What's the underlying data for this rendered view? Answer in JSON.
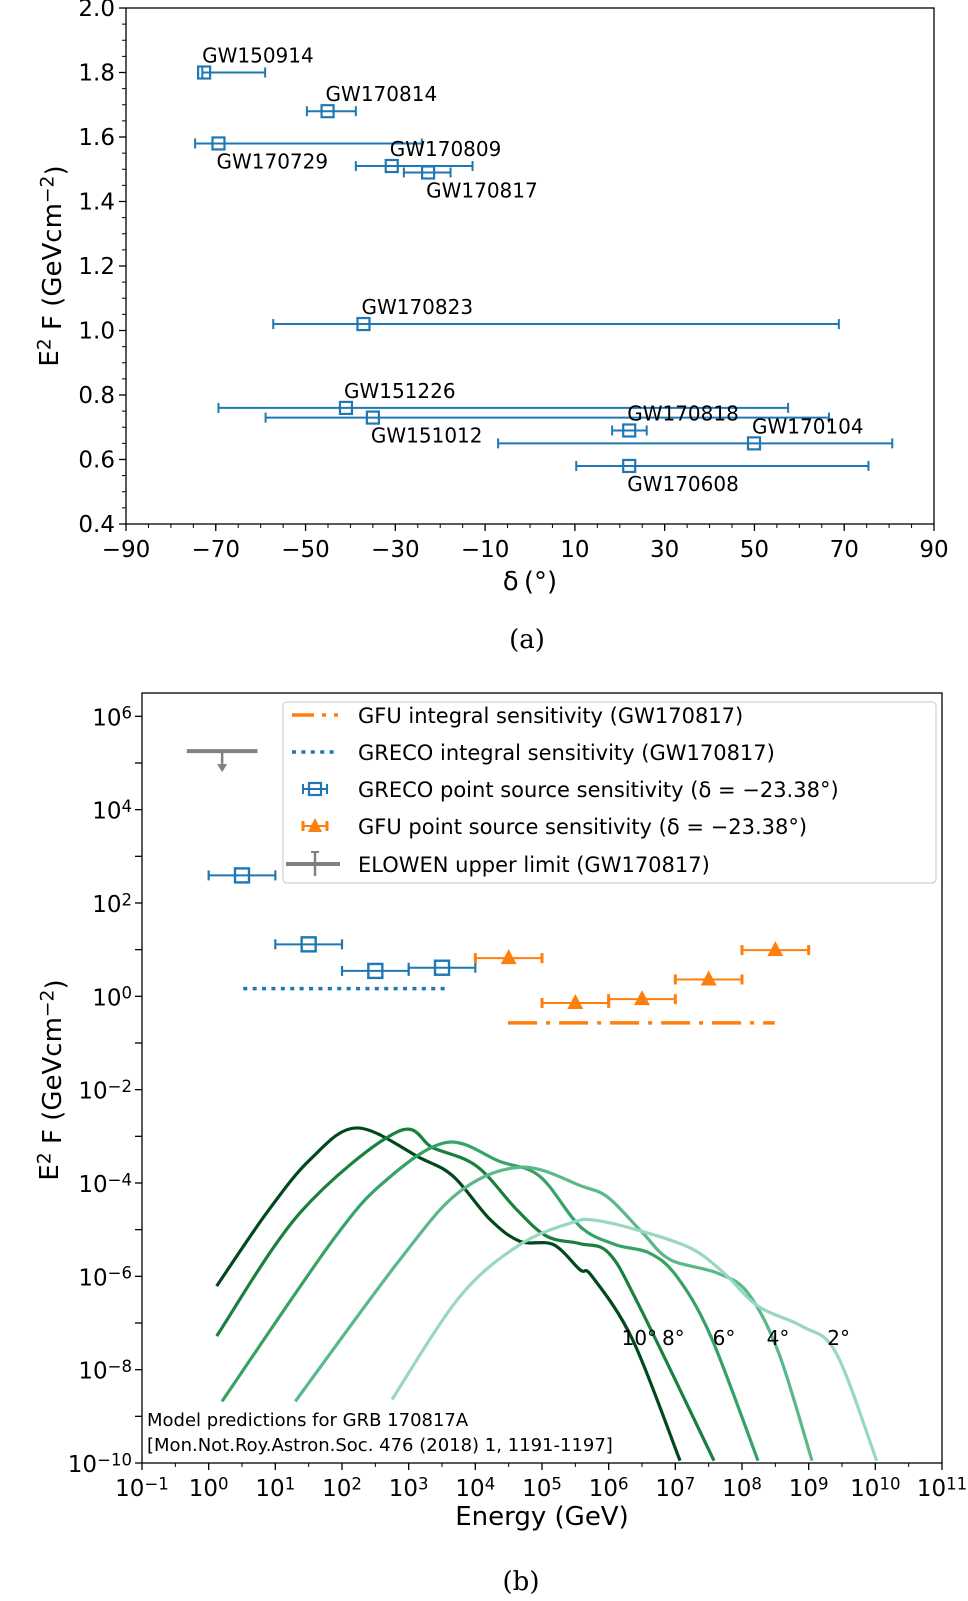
{
  "chart_data": [
    {
      "id": "a",
      "type": "scatter",
      "caption": "(a)",
      "xlabel": "δ (°)",
      "ylabel": "E^{2} F (GeVcm^{−2})",
      "xlim": [
        -90,
        90
      ],
      "ylim": [
        0.4,
        2.0
      ],
      "xticks": [
        -90,
        -70,
        -50,
        -30,
        -10,
        10,
        30,
        50,
        70,
        90
      ],
      "xtick_labels": [
        "−90",
        "−70",
        "−50",
        "−30",
        "−10",
        "10",
        "30",
        "50",
        "70",
        "90"
      ],
      "yticks": [
        0.4,
        0.6,
        0.8,
        1.0,
        1.2,
        1.4,
        1.6,
        1.8,
        2.0
      ],
      "ytick_labels": [
        "0.4",
        "0.6",
        "0.8",
        "1.0",
        "1.2",
        "1.4",
        "1.6",
        "1.8",
        "2.0"
      ],
      "grid": false,
      "color": "#1f77b4",
      "points": [
        {
          "name": "GW150914",
          "dec": -72.6,
          "dec_range": [
            -73.0,
            -59.0
          ],
          "flux": 1.8
        },
        {
          "name": "GW170814",
          "dec": -45.1,
          "dec_range": [
            -49.7,
            -38.8
          ],
          "flux": 1.68
        },
        {
          "name": "GW170729",
          "dec": -69.4,
          "dec_range": [
            -74.6,
            -24.1
          ],
          "flux": 1.58
        },
        {
          "name": "GW170809",
          "dec": -30.8,
          "dec_range": [
            -38.8,
            -12.8
          ],
          "flux": 1.51
        },
        {
          "name": "GW170817",
          "dec": -22.7,
          "dec_range": [
            -28.1,
            -17.7
          ],
          "flux": 1.49
        },
        {
          "name": "GW170823",
          "dec": -37.1,
          "dec_range": [
            -57.2,
            68.8
          ],
          "flux": 1.02
        },
        {
          "name": "GW151226",
          "dec": -41.0,
          "dec_range": [
            -69.4,
            57.5
          ],
          "flux": 0.76
        },
        {
          "name": "GW151012",
          "dec": -35.0,
          "dec_range": [
            -58.9,
            66.6
          ],
          "flux": 0.73
        },
        {
          "name": "GW170818",
          "dec": 22.1,
          "dec_range": [
            18.3,
            26.0
          ],
          "flux": 0.69
        },
        {
          "name": "GW170104",
          "dec": 49.9,
          "dec_range": [
            -7.1,
            80.7
          ],
          "flux": 0.65
        },
        {
          "name": "GW170608",
          "dec": 22.1,
          "dec_range": [
            10.3,
            75.4
          ],
          "flux": 0.58
        }
      ]
    },
    {
      "id": "b",
      "type": "line",
      "caption": "(b)",
      "xlabel": "Energy (GeV)",
      "ylabel": "E^{2} F (GeVcm^{−2})",
      "xscale": "log",
      "yscale": "log",
      "xlim": [
        0.1,
        100000000000.0
      ],
      "ylim": [
        1e-10,
        3160000.0
      ],
      "xtick_exponents": [
        -1,
        0,
        1,
        2,
        3,
        4,
        5,
        6,
        7,
        8,
        9,
        10,
        11
      ],
      "xtick_labels": [
        "10^{−1}",
        "10^{0}",
        "10^{1}",
        "10^{2}",
        "10^{3}",
        "10^{4}",
        "10^{5}",
        "10^{6}",
        "10^{7}",
        "10^{8}",
        "10^{9}",
        "10^{10}",
        "10^{11}"
      ],
      "ytick_exponents": [
        -10,
        -8,
        -6,
        -4,
        -2,
        0,
        2,
        4,
        6
      ],
      "ytick_labels": [
        "10^{−10}",
        "10^{−8}",
        "10^{−6}",
        "10^{−4}",
        "10^{−2}",
        "10^{0}",
        "10^{2}",
        "10^{4}",
        "10^{6}"
      ],
      "grid": false,
      "legend_position": "top-right",
      "legend": [
        {
          "label": "GFU integral sensitivity (GW170817)",
          "style": "dashdot",
          "color": "#ff7f0e"
        },
        {
          "label": "GRECO integral sensitivity (GW170817)",
          "style": "dotted",
          "color": "#1f77b4"
        },
        {
          "label": "GRECO point source sensitivity (δ = −23.38°)",
          "style": "square-errorbar",
          "color": "#1f77b4"
        },
        {
          "label": "GFU point source sensitivity (δ = −23.38°)",
          "style": "triangle-errorbar",
          "color": "#ff7f0e"
        },
        {
          "label": "ELOWEN upper limit (GW170817)",
          "style": "upper-limit",
          "color": "#808080"
        }
      ],
      "gfu_integral": {
        "energy_range": [
          31000.0,
          310000000.0
        ],
        "flux": 0.27
      },
      "greco_integral": {
        "energy_range": [
          3.3,
          3500.0
        ],
        "flux": 1.46
      },
      "greco_points": [
        {
          "energy_bin": [
            1,
            10
          ],
          "flux": 390
        },
        {
          "energy_bin": [
            10,
            100
          ],
          "flux": 13
        },
        {
          "energy_bin": [
            100,
            1000
          ],
          "flux": 3.5
        },
        {
          "energy_bin": [
            1000,
            10000
          ],
          "flux": 4.1
        }
      ],
      "gfu_points": [
        {
          "energy_bin": [
            10000.0,
            100000.0
          ],
          "flux": 6.6
        },
        {
          "energy_bin": [
            100000.0,
            1000000.0
          ],
          "flux": 0.72
        },
        {
          "energy_bin": [
            1000000.0,
            10000000.0
          ],
          "flux": 0.87
        },
        {
          "energy_bin": [
            10000000.0,
            100000000.0
          ],
          "flux": 2.3
        },
        {
          "energy_bin": [
            100000000.0,
            1000000000.0
          ],
          "flux": 9.8
        }
      ],
      "elowen_upper_limit": {
        "energy_range": [
          0.47,
          5.4
        ],
        "flux": 180000.0
      },
      "annotation": [
        "Model predictions for GRB 170817A",
        "[Mon.Not.Roy.Astron.Soc. 476 (2018) 1, 1191-1197]"
      ],
      "model_curves": [
        {
          "label": "10°",
          "color": "#00491d",
          "label_log10": [
            6.46,
            -7.3
          ],
          "log10_points": [
            [
              0.12,
              -6.21
            ],
            [
              0.87,
              -4.64
            ],
            [
              1.52,
              -3.5
            ],
            [
              2.22,
              -2.82
            ],
            [
              3.17,
              -3.46
            ],
            [
              3.67,
              -3.86
            ],
            [
              4.22,
              -4.78
            ],
            [
              4.67,
              -5.25
            ],
            [
              5.17,
              -5.32
            ],
            [
              5.57,
              -5.86
            ],
            [
              5.75,
              -6.0
            ],
            [
              6.36,
              -7.36
            ],
            [
              7.07,
              -9.95
            ]
          ]
        },
        {
          "label": "8°",
          "color": "#1b7f3f",
          "label_log10": [
            6.97,
            -7.3
          ],
          "log10_points": [
            [
              0.12,
              -7.28
            ],
            [
              1.37,
              -4.64
            ],
            [
              2.82,
              -2.91
            ],
            [
              3.37,
              -3.25
            ],
            [
              4.02,
              -3.64
            ],
            [
              4.62,
              -4.57
            ],
            [
              5.07,
              -5.14
            ],
            [
              5.57,
              -5.3
            ],
            [
              6.0,
              -5.5
            ],
            [
              6.46,
              -6.64
            ],
            [
              7.58,
              -9.95
            ]
          ]
        },
        {
          "label": "6°",
          "color": "#37a266",
          "label_log10": [
            7.73,
            -7.3
          ],
          "log10_points": [
            [
              0.2,
              -8.68
            ],
            [
              1.87,
              -5.21
            ],
            [
              2.67,
              -3.93
            ],
            [
              3.57,
              -3.13
            ],
            [
              4.37,
              -3.54
            ],
            [
              4.97,
              -3.86
            ],
            [
              5.57,
              -4.93
            ],
            [
              6.1,
              -5.32
            ],
            [
              6.61,
              -5.5
            ],
            [
              7.02,
              -6.0
            ],
            [
              7.53,
              -7.28
            ],
            [
              8.24,
              -9.95
            ]
          ]
        },
        {
          "label": "4°",
          "color": "#5ab88a",
          "label_log10": [
            8.54,
            -7.3
          ],
          "log10_points": [
            [
              1.3,
              -8.68
            ],
            [
              2.87,
              -5.64
            ],
            [
              3.77,
              -4.18
            ],
            [
              4.7,
              -3.66
            ],
            [
              5.6,
              -4.07
            ],
            [
              6.0,
              -4.32
            ],
            [
              6.51,
              -5.07
            ],
            [
              6.92,
              -5.64
            ],
            [
              7.63,
              -5.93
            ],
            [
              8.09,
              -6.36
            ],
            [
              8.55,
              -7.64
            ],
            [
              9.05,
              -9.95
            ]
          ]
        },
        {
          "label": "2°",
          "color": "#99d8c0",
          "label_log10": [
            9.45,
            -7.3
          ],
          "log10_points": [
            [
              2.75,
              -8.64
            ],
            [
              3.77,
              -6.43
            ],
            [
              4.67,
              -5.32
            ],
            [
              5.47,
              -4.84
            ],
            [
              5.8,
              -4.8
            ],
            [
              6.41,
              -5.0
            ],
            [
              7.22,
              -5.39
            ],
            [
              7.73,
              -5.93
            ],
            [
              8.24,
              -6.64
            ],
            [
              8.9,
              -7.07
            ],
            [
              9.41,
              -7.64
            ],
            [
              10.02,
              -9.95
            ]
          ]
        }
      ]
    }
  ]
}
